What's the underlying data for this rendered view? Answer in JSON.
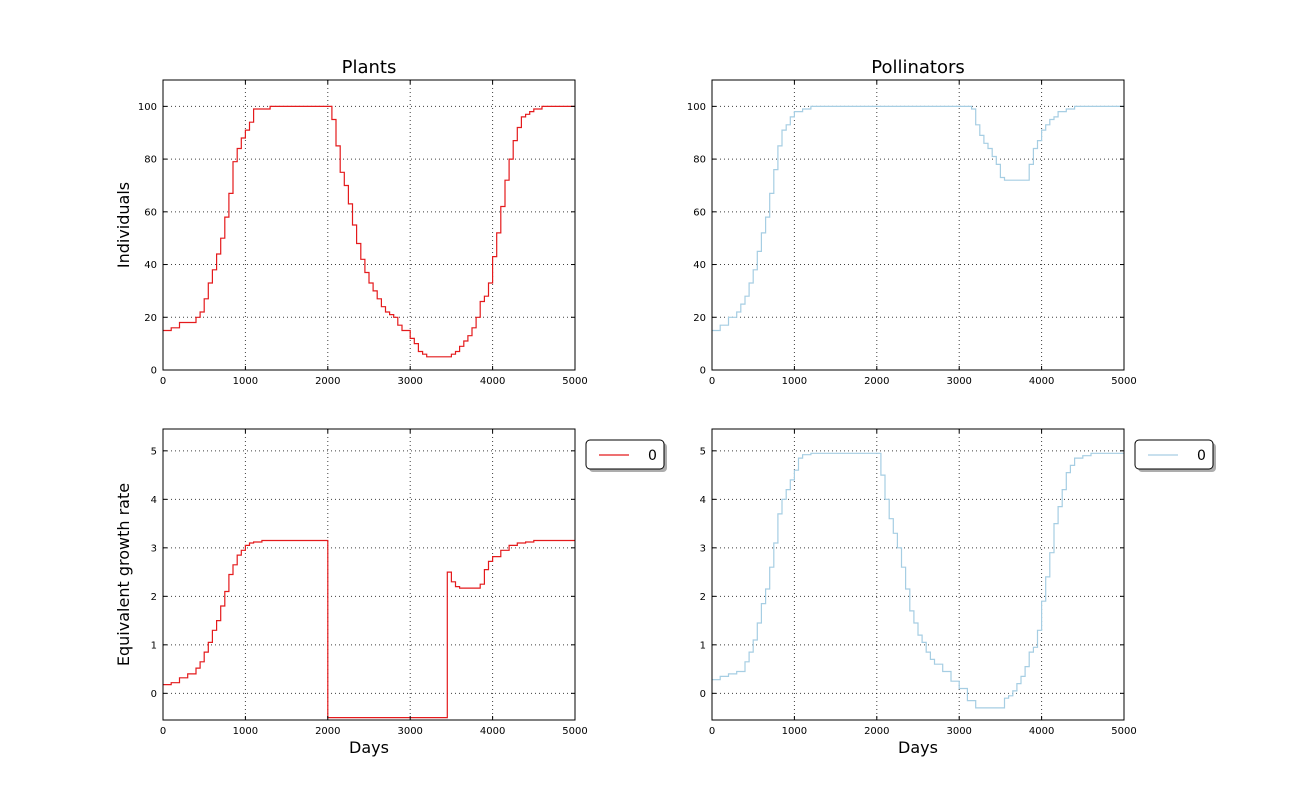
{
  "chart_data": [
    {
      "id": "plants-individuals",
      "type": "line",
      "title": "Plants",
      "xlabel": "",
      "ylabel": "Individuals",
      "xlim": [
        0,
        5000
      ],
      "ylim": [
        0,
        110
      ],
      "xticks": [
        0,
        1000,
        2000,
        3000,
        4000,
        5000
      ],
      "yticks": [
        0,
        20,
        40,
        60,
        80,
        100
      ],
      "grid": true,
      "legend": null,
      "series": [
        {
          "color": "#e41a1c",
          "x": [
            0,
            100,
            200,
            300,
            400,
            450,
            500,
            550,
            600,
            650,
            700,
            750,
            800,
            850,
            900,
            950,
            1000,
            1050,
            1100,
            1200,
            1300,
            1500,
            1700,
            1900,
            2000,
            2050,
            2100,
            2150,
            2200,
            2250,
            2300,
            2350,
            2400,
            2450,
            2500,
            2550,
            2600,
            2650,
            2700,
            2750,
            2800,
            2850,
            2900,
            3000,
            3050,
            3100,
            3150,
            3200,
            3300,
            3400,
            3500,
            3550,
            3600,
            3650,
            3700,
            3750,
            3800,
            3850,
            3900,
            3950,
            4000,
            4050,
            4100,
            4150,
            4200,
            4250,
            4300,
            4350,
            4400,
            4450,
            4500,
            4550,
            4600,
            4700,
            4800,
            5000
          ],
          "y": [
            15,
            16,
            18,
            18,
            20,
            22,
            27,
            33,
            38,
            44,
            50,
            58,
            67,
            79,
            84,
            88,
            91,
            94,
            99,
            99,
            100,
            100,
            100,
            100,
            100,
            95,
            85,
            75,
            70,
            63,
            55,
            48,
            42,
            37,
            33,
            30,
            27,
            24,
            22,
            21,
            20,
            17,
            15,
            12,
            10,
            7,
            6,
            5,
            5,
            5,
            6,
            7,
            9,
            11,
            13,
            16,
            20,
            26,
            28,
            33,
            43,
            52,
            62,
            72,
            80,
            87,
            92,
            96,
            97,
            98,
            99,
            99,
            100,
            100,
            100,
            100
          ]
        }
      ]
    },
    {
      "id": "pollinators-individuals",
      "type": "line",
      "title": "Pollinators",
      "xlabel": "",
      "ylabel": "",
      "xlim": [
        0,
        5000
      ],
      "ylim": [
        0,
        110
      ],
      "xticks": [
        0,
        1000,
        2000,
        3000,
        4000,
        5000
      ],
      "yticks": [
        0,
        20,
        40,
        60,
        80,
        100
      ],
      "grid": true,
      "legend": null,
      "series": [
        {
          "color": "#a6cee3",
          "x": [
            0,
            100,
            200,
            300,
            350,
            400,
            450,
            500,
            550,
            600,
            650,
            700,
            750,
            800,
            850,
            900,
            950,
            1000,
            1100,
            1200,
            1500,
            2000,
            2500,
            3000,
            3100,
            3150,
            3200,
            3250,
            3300,
            3350,
            3400,
            3450,
            3500,
            3550,
            3600,
            3700,
            3800,
            3850,
            3900,
            3950,
            4000,
            4050,
            4100,
            4150,
            4200,
            4300,
            4400,
            4500,
            5000
          ],
          "y": [
            15,
            17,
            20,
            22,
            25,
            28,
            33,
            38,
            45,
            52,
            58,
            67,
            76,
            85,
            91,
            93,
            96,
            98,
            99,
            100,
            100,
            100,
            100,
            100,
            100,
            99,
            93,
            89,
            86,
            84,
            81,
            78,
            73,
            72,
            72,
            72,
            72,
            78,
            84,
            87,
            91,
            93,
            95,
            96,
            98,
            99,
            100,
            100,
            100
          ]
        }
      ]
    },
    {
      "id": "plants-growth",
      "type": "line",
      "title": "",
      "xlabel": "Days",
      "ylabel": "Equivalent growth rate",
      "xlim": [
        0,
        5000
      ],
      "ylim": [
        -0.55,
        5.45
      ],
      "xticks": [
        0,
        1000,
        2000,
        3000,
        4000,
        5000
      ],
      "yticks": [
        0,
        1,
        2,
        3,
        4,
        5
      ],
      "grid": true,
      "legend": {
        "entries": [
          "0"
        ],
        "placement": "outside-right-top"
      },
      "series": [
        {
          "name": "0",
          "color": "#e41a1c",
          "x": [
            0,
            100,
            200,
            300,
            400,
            450,
            500,
            550,
            600,
            650,
            700,
            750,
            800,
            850,
            900,
            950,
            1000,
            1050,
            1100,
            1200,
            1500,
            1999,
            2000,
            2500,
            3000,
            3449,
            3450,
            3500,
            3550,
            3600,
            3700,
            3800,
            3850,
            3900,
            3950,
            4000,
            4100,
            4200,
            4300,
            4400,
            4500,
            5000
          ],
          "y": [
            0.18,
            0.22,
            0.32,
            0.4,
            0.52,
            0.65,
            0.85,
            1.05,
            1.3,
            1.5,
            1.8,
            2.1,
            2.45,
            2.65,
            2.85,
            2.95,
            3.05,
            3.1,
            3.12,
            3.15,
            3.15,
            3.15,
            -0.5,
            -0.5,
            -0.5,
            -0.5,
            2.5,
            2.3,
            2.2,
            2.17,
            2.17,
            2.17,
            2.25,
            2.55,
            2.72,
            2.82,
            2.95,
            3.05,
            3.1,
            3.12,
            3.15,
            3.15
          ]
        }
      ]
    },
    {
      "id": "pollinators-growth",
      "type": "line",
      "title": "",
      "xlabel": "Days",
      "ylabel": "",
      "xlim": [
        0,
        5000
      ],
      "ylim": [
        -0.55,
        5.45
      ],
      "xticks": [
        0,
        1000,
        2000,
        3000,
        4000,
        5000
      ],
      "yticks": [
        0,
        1,
        2,
        3,
        4,
        5
      ],
      "grid": true,
      "legend": {
        "entries": [
          "0"
        ],
        "placement": "outside-right-top"
      },
      "series": [
        {
          "name": "0",
          "color": "#a6cee3",
          "x": [
            0,
            100,
            200,
            300,
            400,
            450,
            500,
            550,
            600,
            650,
            700,
            750,
            800,
            850,
            900,
            950,
            1000,
            1050,
            1100,
            1200,
            1500,
            2000,
            2050,
            2100,
            2150,
            2200,
            2250,
            2300,
            2350,
            2400,
            2450,
            2500,
            2550,
            2600,
            2650,
            2700,
            2800,
            2900,
            3000,
            3100,
            3200,
            3300,
            3500,
            3550,
            3600,
            3650,
            3700,
            3750,
            3800,
            3850,
            3900,
            3950,
            4000,
            4050,
            4100,
            4150,
            4200,
            4250,
            4300,
            4350,
            4400,
            4500,
            4600,
            4700,
            5000
          ],
          "y": [
            0.28,
            0.35,
            0.4,
            0.45,
            0.65,
            0.85,
            1.1,
            1.45,
            1.85,
            2.15,
            2.6,
            3.1,
            3.7,
            4.0,
            4.2,
            4.4,
            4.6,
            4.85,
            4.92,
            4.95,
            4.95,
            4.95,
            4.5,
            4.0,
            3.6,
            3.3,
            3.0,
            2.6,
            2.15,
            1.7,
            1.45,
            1.2,
            1.05,
            0.85,
            0.7,
            0.6,
            0.45,
            0.25,
            0.1,
            -0.15,
            -0.3,
            -0.3,
            -0.3,
            -0.1,
            -0.05,
            0.05,
            0.2,
            0.35,
            0.55,
            0.85,
            0.95,
            1.3,
            1.9,
            2.4,
            2.9,
            3.5,
            3.85,
            4.2,
            4.55,
            4.7,
            4.85,
            4.9,
            4.95,
            4.95,
            4.95
          ]
        }
      ]
    }
  ]
}
